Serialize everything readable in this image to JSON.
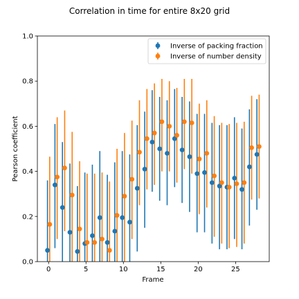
{
  "chart_data": {
    "type": "scatter",
    "title": "Correlation in time for entire 8x20 grid",
    "xlabel": "Frame",
    "ylabel": "Pearson coefficient",
    "xlim": [
      -1.5,
      29.5
    ],
    "ylim": [
      0.0,
      1.0
    ],
    "xticks": [
      0,
      5,
      10,
      15,
      20,
      25
    ],
    "yticks": [
      0.0,
      0.2,
      0.4,
      0.6,
      0.8,
      1.0
    ],
    "xtick_labels": [
      "0",
      "5",
      "10",
      "15",
      "20",
      "25"
    ],
    "ytick_labels": [
      "0.0",
      "0.2",
      "0.4",
      "0.6",
      "0.8",
      "1.0"
    ],
    "legend_position": "top-right",
    "grid": false,
    "series": [
      {
        "name": "Inverse of packing fraction",
        "color": "#1f77b4",
        "x": [
          0,
          1,
          2,
          3,
          4,
          5,
          6,
          7,
          8,
          9,
          10,
          11,
          12,
          13,
          14,
          15,
          16,
          17,
          18,
          19,
          20,
          21,
          22,
          23,
          24,
          25,
          26,
          27,
          28
        ],
        "y": [
          0.05,
          0.34,
          0.24,
          0.13,
          0.045,
          0.08,
          0.115,
          0.195,
          0.085,
          0.135,
          0.195,
          0.175,
          0.325,
          0.41,
          0.53,
          0.5,
          0.48,
          0.545,
          0.495,
          0.465,
          0.39,
          0.395,
          0.35,
          0.335,
          0.33,
          0.37,
          0.32,
          0.42,
          0.475
        ],
        "err_low": [
          0.0,
          0.06,
          0.0,
          0.0,
          0.0,
          0.0,
          0.0,
          0.0,
          0.0,
          0.0,
          0.0,
          0.0,
          0.045,
          0.15,
          0.31,
          0.27,
          0.25,
          0.33,
          0.26,
          0.22,
          0.13,
          0.13,
          0.08,
          0.055,
          0.055,
          0.1,
          0.055,
          0.16,
          0.23
        ],
        "err_high": [
          0.36,
          0.61,
          0.53,
          0.435,
          0.335,
          0.395,
          0.43,
          0.49,
          0.385,
          0.44,
          0.49,
          0.475,
          0.605,
          0.665,
          0.76,
          0.73,
          0.715,
          0.765,
          0.73,
          0.71,
          0.655,
          0.655,
          0.615,
          0.605,
          0.605,
          0.64,
          0.59,
          0.675,
          0.72
        ]
      },
      {
        "name": "Inverse of number density",
        "color": "#ff7f0e",
        "x": [
          0,
          1,
          2,
          3,
          4,
          5,
          6,
          7,
          8,
          9,
          10,
          11,
          12,
          13,
          14,
          15,
          16,
          17,
          18,
          19,
          20,
          21,
          22,
          23,
          24,
          25,
          26,
          27,
          28
        ],
        "y": [
          0.165,
          0.375,
          0.415,
          0.295,
          0.145,
          0.085,
          0.085,
          0.1,
          0.05,
          0.205,
          0.29,
          0.365,
          0.485,
          0.545,
          0.57,
          0.62,
          0.6,
          0.56,
          0.62,
          0.615,
          0.455,
          0.48,
          0.38,
          0.35,
          0.33,
          0.345,
          0.35,
          0.505,
          0.51
        ],
        "err_low": [
          0.0,
          0.1,
          0.135,
          0.0,
          0.0,
          0.0,
          0.0,
          0.0,
          0.0,
          0.0,
          0.0,
          0.1,
          0.25,
          0.32,
          0.34,
          0.4,
          0.4,
          0.35,
          0.41,
          0.39,
          0.21,
          0.24,
          0.11,
          0.08,
          0.06,
          0.065,
          0.08,
          0.275,
          0.28
        ],
        "err_high": [
          0.465,
          0.64,
          0.67,
          0.575,
          0.445,
          0.39,
          0.39,
          0.395,
          0.355,
          0.5,
          0.57,
          0.625,
          0.715,
          0.765,
          0.79,
          0.81,
          0.8,
          0.77,
          0.81,
          0.81,
          0.7,
          0.715,
          0.645,
          0.615,
          0.61,
          0.615,
          0.62,
          0.735,
          0.74
        ]
      }
    ]
  }
}
